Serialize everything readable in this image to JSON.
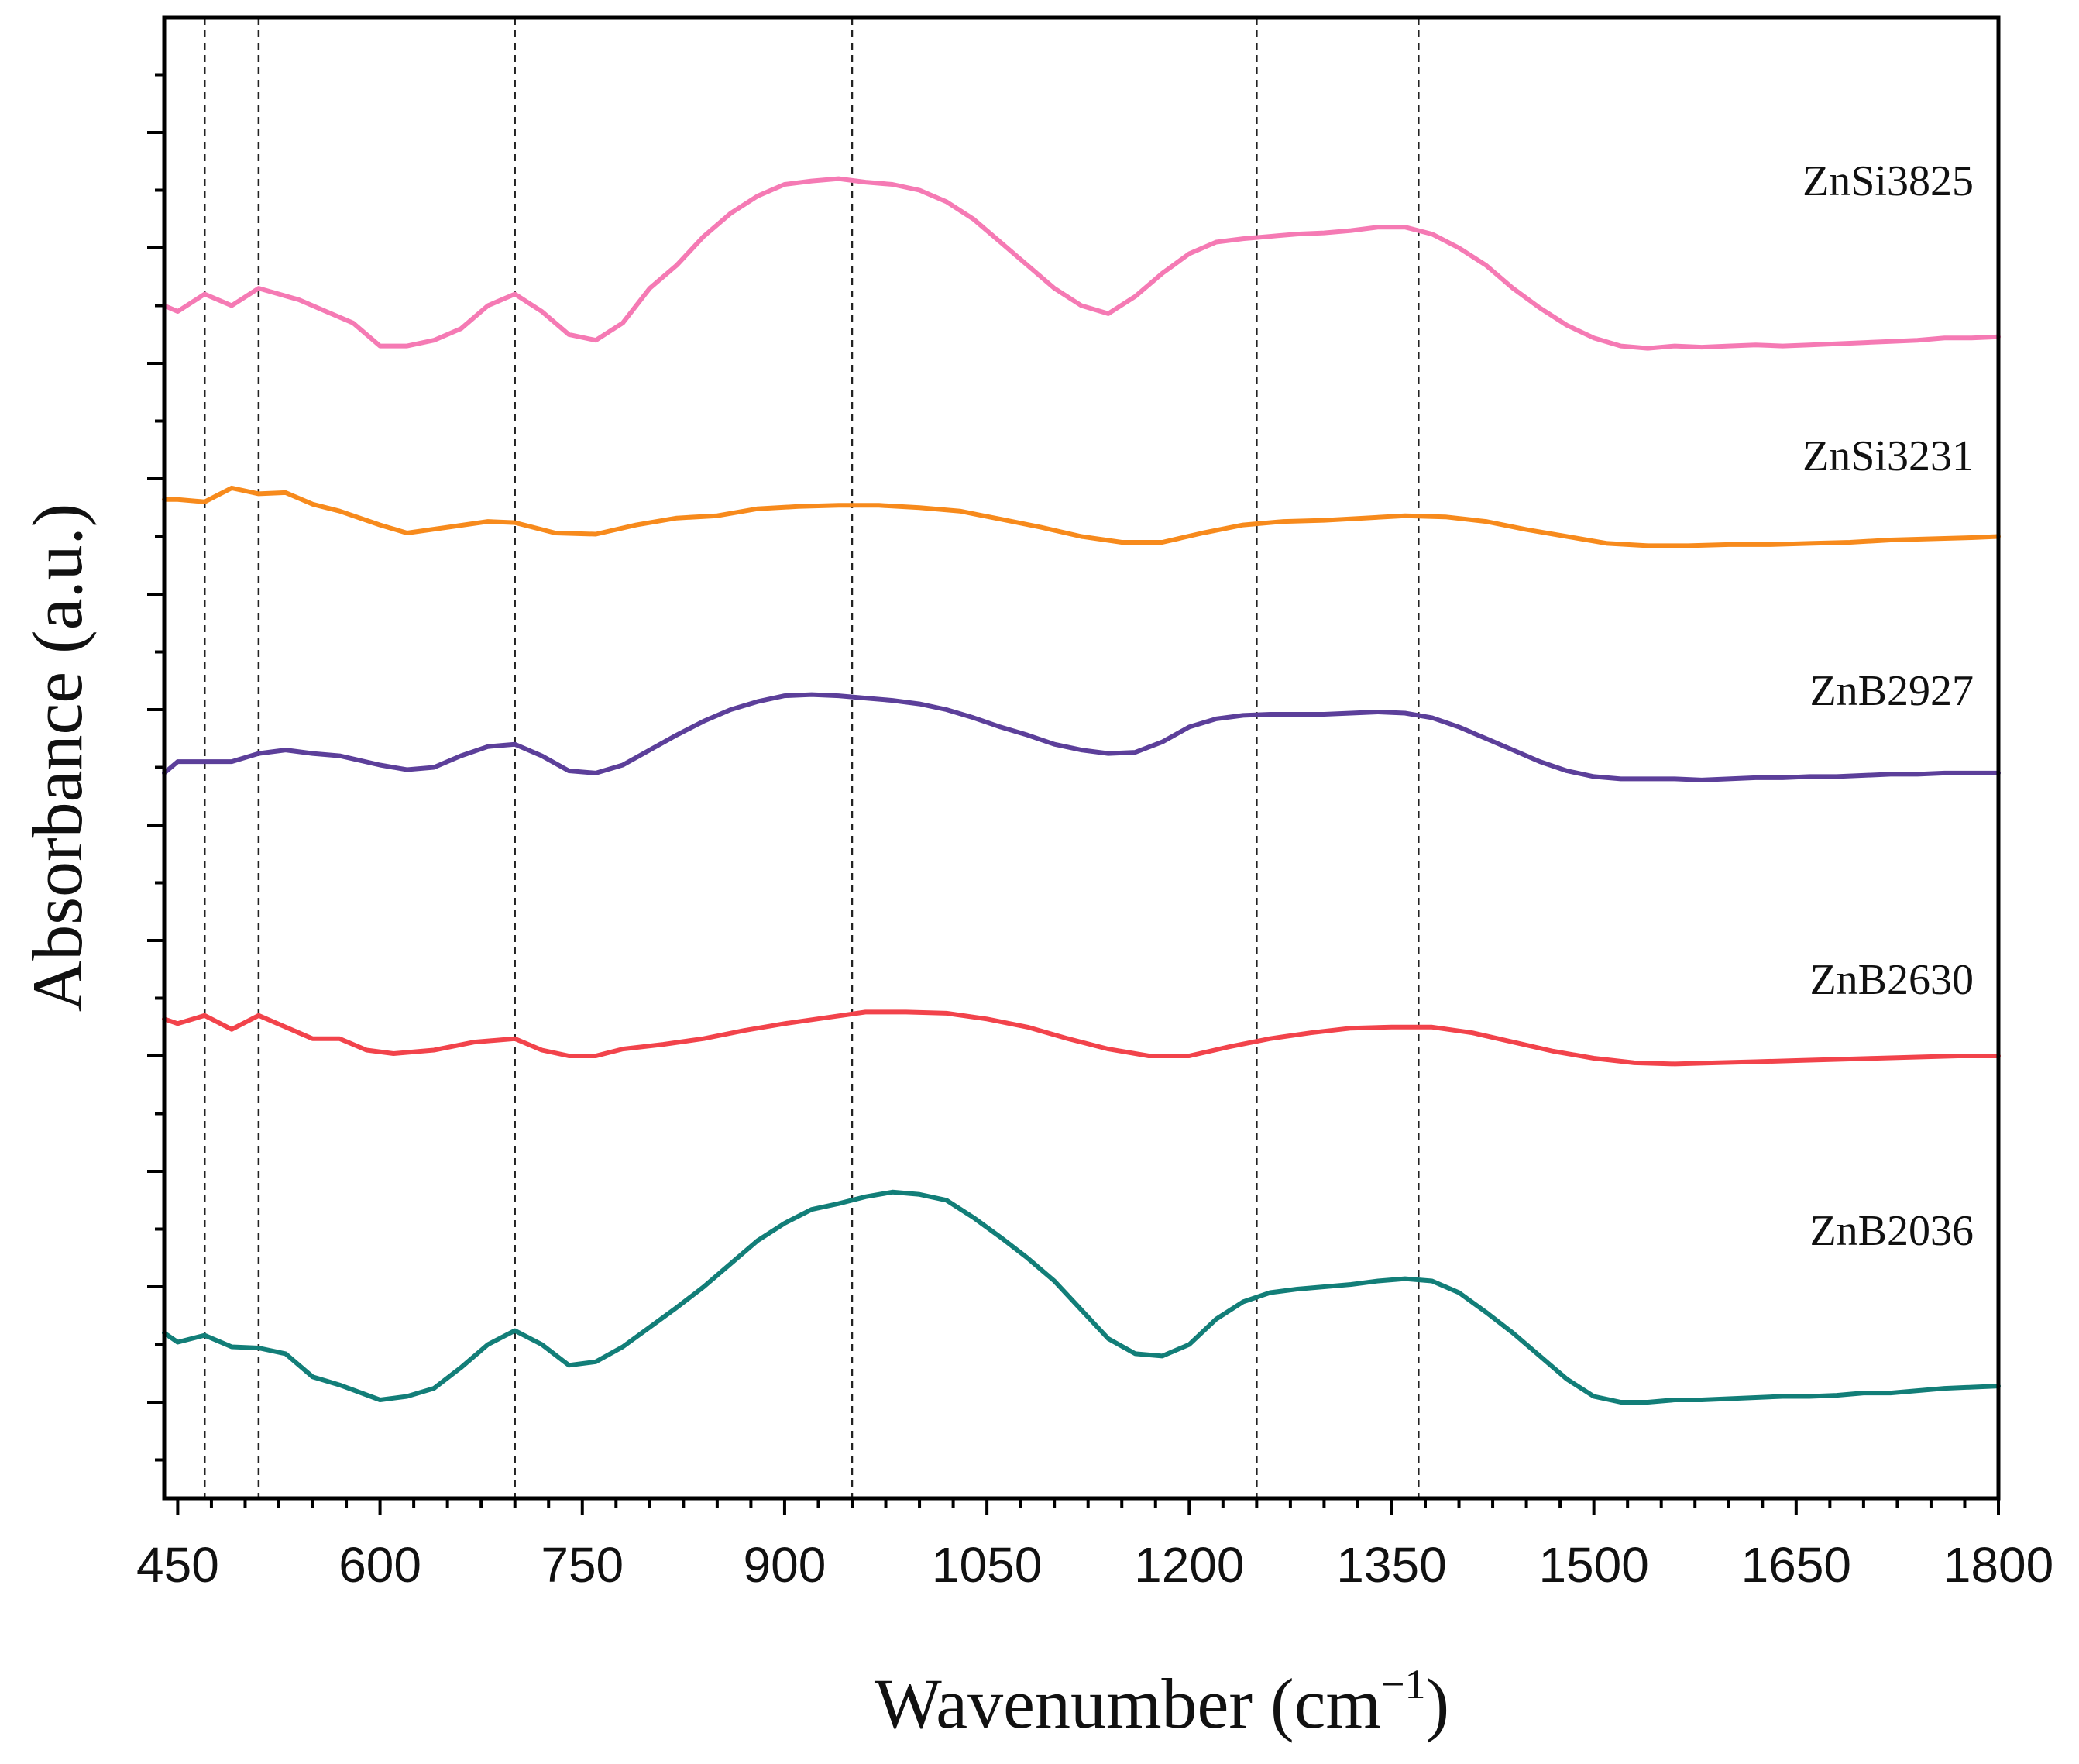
{
  "chart_data": {
    "type": "line",
    "title": "",
    "xlabel": "Wavenumber (cm",
    "xlabel_sup": "−1",
    "xlabel_close": ")",
    "ylabel": "Absorbance (a.u.)",
    "xlim": [
      440,
      1800
    ],
    "ylim": [
      0,
      12.5
    ],
    "x_ticks": [
      450,
      600,
      750,
      900,
      1050,
      1200,
      1350,
      1500,
      1650,
      1800
    ],
    "x_tick_labels": [
      "450",
      "600",
      "750",
      "900",
      "1050",
      "1200",
      "1350",
      "1500",
      "1650",
      "1800"
    ],
    "reference_lines": [
      470,
      510,
      700,
      950,
      1250,
      1370
    ],
    "series": [
      {
        "name": "ZnSi3825",
        "color": "#f57ab4",
        "x": [
          440,
          450,
          470,
          490,
          510,
          540,
          560,
          580,
          600,
          620,
          640,
          660,
          680,
          700,
          720,
          740,
          760,
          780,
          800,
          820,
          840,
          860,
          880,
          900,
          920,
          940,
          960,
          980,
          1000,
          1020,
          1040,
          1060,
          1080,
          1100,
          1120,
          1140,
          1160,
          1180,
          1200,
          1220,
          1240,
          1260,
          1280,
          1300,
          1320,
          1340,
          1360,
          1380,
          1400,
          1420,
          1440,
          1460,
          1480,
          1500,
          1520,
          1540,
          1560,
          1580,
          1600,
          1620,
          1640,
          1660,
          1680,
          1700,
          1720,
          1740,
          1760,
          1780,
          1800
        ],
        "y": [
          9.5,
          9.45,
          9.6,
          9.5,
          9.65,
          9.55,
          9.45,
          9.35,
          9.15,
          9.15,
          9.2,
          9.3,
          9.5,
          9.6,
          9.45,
          9.25,
          9.2,
          9.35,
          9.65,
          9.85,
          10.1,
          10.3,
          10.45,
          10.55,
          10.58,
          10.6,
          10.57,
          10.55,
          10.5,
          10.4,
          10.25,
          10.05,
          9.85,
          9.65,
          9.5,
          9.43,
          9.58,
          9.78,
          9.95,
          10.05,
          10.08,
          10.1,
          10.12,
          10.13,
          10.15,
          10.18,
          10.18,
          10.12,
          10.0,
          9.85,
          9.65,
          9.48,
          9.33,
          9.22,
          9.15,
          9.13,
          9.15,
          9.14,
          9.15,
          9.16,
          9.15,
          9.16,
          9.17,
          9.18,
          9.19,
          9.2,
          9.22,
          9.22,
          9.23
        ]
      },
      {
        "name": "ZnSi3231",
        "color": "#f78a1c",
        "x": [
          440,
          450,
          470,
          490,
          510,
          530,
          550,
          570,
          600,
          620,
          650,
          680,
          700,
          730,
          760,
          790,
          820,
          850,
          880,
          910,
          940,
          970,
          1000,
          1030,
          1060,
          1090,
          1120,
          1150,
          1180,
          1210,
          1240,
          1270,
          1300,
          1330,
          1360,
          1390,
          1420,
          1450,
          1480,
          1510,
          1540,
          1570,
          1600,
          1630,
          1660,
          1690,
          1720,
          1750,
          1780,
          1800
        ],
        "y": [
          7.82,
          7.82,
          7.8,
          7.92,
          7.87,
          7.88,
          7.78,
          7.72,
          7.6,
          7.53,
          7.58,
          7.63,
          7.62,
          7.53,
          7.52,
          7.6,
          7.66,
          7.68,
          7.74,
          7.76,
          7.77,
          7.77,
          7.75,
          7.72,
          7.65,
          7.58,
          7.5,
          7.45,
          7.45,
          7.53,
          7.6,
          7.63,
          7.64,
          7.66,
          7.68,
          7.67,
          7.63,
          7.56,
          7.5,
          7.44,
          7.42,
          7.42,
          7.43,
          7.43,
          7.44,
          7.45,
          7.47,
          7.48,
          7.49,
          7.5
        ]
      },
      {
        "name": "ZnB2927",
        "color": "#5c3f9a",
        "x": [
          440,
          450,
          470,
          490,
          510,
          530,
          550,
          570,
          600,
          620,
          640,
          660,
          680,
          700,
          720,
          740,
          760,
          780,
          800,
          820,
          840,
          860,
          880,
          900,
          920,
          940,
          960,
          980,
          1000,
          1020,
          1040,
          1060,
          1080,
          1100,
          1120,
          1140,
          1160,
          1180,
          1200,
          1220,
          1240,
          1260,
          1280,
          1300,
          1320,
          1340,
          1360,
          1380,
          1400,
          1420,
          1440,
          1460,
          1480,
          1500,
          1520,
          1540,
          1560,
          1580,
          1600,
          1620,
          1640,
          1660,
          1680,
          1700,
          1720,
          1740,
          1760,
          1780,
          1800
        ],
        "y": [
          5.45,
          5.55,
          5.55,
          5.55,
          5.62,
          5.65,
          5.62,
          5.6,
          5.52,
          5.48,
          5.5,
          5.6,
          5.68,
          5.7,
          5.6,
          5.47,
          5.45,
          5.52,
          5.65,
          5.78,
          5.9,
          6.0,
          6.07,
          6.12,
          6.13,
          6.12,
          6.1,
          6.08,
          6.05,
          6.0,
          5.93,
          5.85,
          5.78,
          5.7,
          5.65,
          5.62,
          5.63,
          5.72,
          5.85,
          5.92,
          5.95,
          5.96,
          5.96,
          5.96,
          5.97,
          5.98,
          5.97,
          5.93,
          5.85,
          5.75,
          5.65,
          5.55,
          5.47,
          5.42,
          5.4,
          5.4,
          5.4,
          5.39,
          5.4,
          5.41,
          5.41,
          5.42,
          5.42,
          5.43,
          5.44,
          5.44,
          5.45,
          5.45,
          5.45
        ]
      },
      {
        "name": "ZnB2630",
        "color": "#f2434b",
        "x": [
          440,
          450,
          470,
          490,
          510,
          530,
          550,
          570,
          590,
          610,
          640,
          670,
          700,
          720,
          740,
          760,
          780,
          810,
          840,
          870,
          900,
          930,
          960,
          990,
          1020,
          1050,
          1080,
          1110,
          1140,
          1170,
          1200,
          1230,
          1260,
          1290,
          1320,
          1350,
          1380,
          1410,
          1440,
          1470,
          1500,
          1530,
          1560,
          1590,
          1620,
          1650,
          1680,
          1710,
          1740,
          1770,
          1800
        ],
        "y": [
          3.32,
          3.28,
          3.35,
          3.23,
          3.35,
          3.25,
          3.15,
          3.15,
          3.05,
          3.02,
          3.05,
          3.12,
          3.15,
          3.05,
          3.0,
          3.0,
          3.06,
          3.1,
          3.15,
          3.22,
          3.28,
          3.33,
          3.38,
          3.38,
          3.37,
          3.32,
          3.25,
          3.15,
          3.06,
          3.0,
          3.0,
          3.08,
          3.15,
          3.2,
          3.24,
          3.25,
          3.25,
          3.2,
          3.12,
          3.04,
          2.98,
          2.94,
          2.93,
          2.94,
          2.95,
          2.96,
          2.97,
          2.98,
          2.99,
          3.0,
          3.0
        ]
      },
      {
        "name": "ZnB2036",
        "color": "#127e78",
        "x": [
          440,
          450,
          470,
          490,
          510,
          530,
          550,
          570,
          600,
          620,
          640,
          660,
          680,
          700,
          720,
          740,
          760,
          780,
          800,
          820,
          840,
          860,
          880,
          900,
          920,
          940,
          960,
          980,
          1000,
          1020,
          1040,
          1060,
          1080,
          1100,
          1120,
          1140,
          1160,
          1180,
          1200,
          1220,
          1240,
          1260,
          1280,
          1300,
          1320,
          1340,
          1360,
          1380,
          1400,
          1420,
          1440,
          1460,
          1480,
          1500,
          1520,
          1540,
          1560,
          1580,
          1600,
          1620,
          1640,
          1660,
          1680,
          1700,
          1720,
          1740,
          1760,
          1780,
          1800
        ],
        "y": [
          0.6,
          0.52,
          0.58,
          0.48,
          0.47,
          0.42,
          0.22,
          0.15,
          0.02,
          0.05,
          0.12,
          0.3,
          0.5,
          0.62,
          0.5,
          0.32,
          0.35,
          0.48,
          0.65,
          0.82,
          1.0,
          1.2,
          1.4,
          1.55,
          1.67,
          1.72,
          1.78,
          1.82,
          1.8,
          1.75,
          1.6,
          1.43,
          1.25,
          1.05,
          0.8,
          0.55,
          0.42,
          0.4,
          0.5,
          0.72,
          0.87,
          0.95,
          0.98,
          1.0,
          1.02,
          1.05,
          1.07,
          1.05,
          0.95,
          0.78,
          0.6,
          0.4,
          0.2,
          0.05,
          0.0,
          0.0,
          0.02,
          0.02,
          0.03,
          0.04,
          0.05,
          0.05,
          0.06,
          0.08,
          0.08,
          0.1,
          0.12,
          0.13,
          0.14
        ]
      }
    ]
  }
}
